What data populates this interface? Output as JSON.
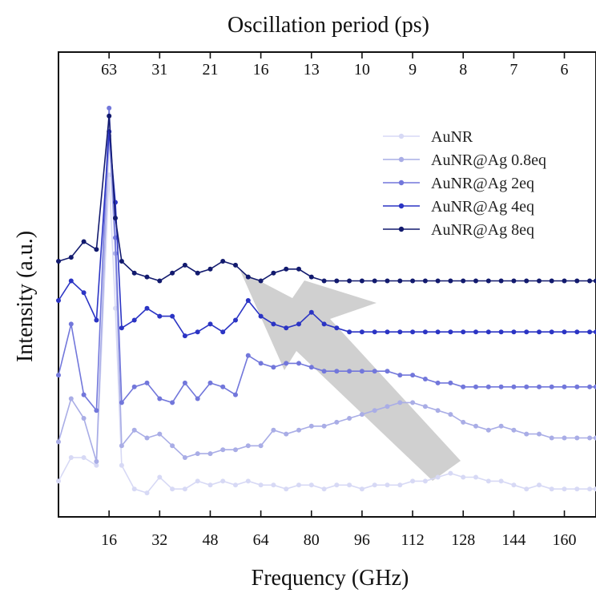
{
  "chart_data": {
    "type": "line",
    "xlabel": "Frequency (GHz)",
    "ylabel": "Intensity (a.u.)",
    "top_axis_label": "Oscillation period (ps)",
    "xlim": [
      0,
      170
    ],
    "bottom_ticks": [
      {
        "value": 16,
        "label": "16"
      },
      {
        "value": 32,
        "label": "32"
      },
      {
        "value": 48,
        "label": "48"
      },
      {
        "value": 64,
        "label": "64"
      },
      {
        "value": 80,
        "label": "80"
      },
      {
        "value": 96,
        "label": "96"
      },
      {
        "value": 112,
        "label": "112"
      },
      {
        "value": 128,
        "label": "128"
      },
      {
        "value": 144,
        "label": "144"
      },
      {
        "value": 160,
        "label": "160"
      }
    ],
    "top_ticks": [
      {
        "value": 16,
        "label": "63"
      },
      {
        "value": 32,
        "label": "31"
      },
      {
        "value": 48,
        "label": "21"
      },
      {
        "value": 64,
        "label": "16"
      },
      {
        "value": 80,
        "label": "13"
      },
      {
        "value": 96,
        "label": "10"
      },
      {
        "value": 112,
        "label": "9"
      },
      {
        "value": 128,
        "label": "8"
      },
      {
        "value": 144,
        "label": "7"
      },
      {
        "value": 160,
        "label": "6"
      }
    ],
    "legend_position": "top-right",
    "annotation": "grey arrow pointing from high to low frequency",
    "series": [
      {
        "name": "AuNR",
        "color": "#d7d9f5",
        "x": [
          0,
          4,
          8,
          12,
          16,
          18,
          20,
          24,
          28,
          32,
          36,
          40,
          44,
          48,
          52,
          56,
          60,
          64,
          68,
          72,
          76,
          80,
          84,
          88,
          92,
          96,
          100,
          104,
          108,
          112,
          116,
          120,
          124,
          128,
          132,
          136,
          140,
          144,
          148,
          152,
          156,
          160,
          164,
          168,
          170
        ],
        "y": [
          0.04,
          0.1,
          0.1,
          0.08,
          0.82,
          0.48,
          0.08,
          0.02,
          0.01,
          0.05,
          0.02,
          0.02,
          0.04,
          0.03,
          0.04,
          0.03,
          0.04,
          0.03,
          0.03,
          0.02,
          0.03,
          0.03,
          0.02,
          0.03,
          0.03,
          0.02,
          0.03,
          0.03,
          0.03,
          0.04,
          0.04,
          0.05,
          0.06,
          0.05,
          0.05,
          0.04,
          0.04,
          0.03,
          0.02,
          0.03,
          0.02,
          0.02,
          0.02,
          0.02,
          0.02
        ]
      },
      {
        "name": "AuNR@Ag 0.8eq",
        "color": "#a9ade6",
        "x": [
          0,
          4,
          8,
          12,
          16,
          18,
          20,
          24,
          28,
          32,
          36,
          40,
          44,
          48,
          52,
          56,
          60,
          64,
          68,
          72,
          76,
          80,
          84,
          88,
          92,
          96,
          100,
          104,
          108,
          112,
          116,
          120,
          124,
          128,
          132,
          136,
          140,
          144,
          148,
          152,
          156,
          160,
          164,
          168,
          170
        ],
        "y": [
          0.14,
          0.25,
          0.2,
          0.09,
          0.92,
          0.62,
          0.13,
          0.17,
          0.15,
          0.16,
          0.13,
          0.1,
          0.11,
          0.11,
          0.12,
          0.12,
          0.13,
          0.13,
          0.17,
          0.16,
          0.17,
          0.18,
          0.18,
          0.19,
          0.2,
          0.21,
          0.22,
          0.23,
          0.24,
          0.24,
          0.23,
          0.22,
          0.21,
          0.19,
          0.18,
          0.17,
          0.18,
          0.17,
          0.16,
          0.16,
          0.15,
          0.15,
          0.15,
          0.15,
          0.15
        ]
      },
      {
        "name": "AuNR@Ag 2eq",
        "color": "#7277db",
        "x": [
          0,
          4,
          8,
          12,
          16,
          18,
          20,
          24,
          28,
          32,
          36,
          40,
          44,
          48,
          52,
          56,
          60,
          64,
          68,
          72,
          76,
          80,
          84,
          88,
          92,
          96,
          100,
          104,
          108,
          112,
          116,
          120,
          124,
          128,
          132,
          136,
          140,
          144,
          148,
          152,
          156,
          160,
          164,
          168,
          170
        ],
        "y": [
          0.31,
          0.44,
          0.26,
          0.22,
          0.99,
          0.66,
          0.24,
          0.28,
          0.29,
          0.25,
          0.24,
          0.29,
          0.25,
          0.29,
          0.28,
          0.26,
          0.36,
          0.34,
          0.33,
          0.34,
          0.34,
          0.33,
          0.32,
          0.32,
          0.32,
          0.32,
          0.32,
          0.32,
          0.31,
          0.31,
          0.3,
          0.29,
          0.29,
          0.28,
          0.28,
          0.28,
          0.28,
          0.28,
          0.28,
          0.28,
          0.28,
          0.28,
          0.28,
          0.28,
          0.28
        ]
      },
      {
        "name": "AuNR@Ag 4eq",
        "color": "#2b34c4",
        "x": [
          0,
          4,
          8,
          12,
          16,
          18,
          20,
          24,
          28,
          32,
          36,
          40,
          44,
          48,
          52,
          56,
          60,
          64,
          68,
          72,
          76,
          80,
          84,
          88,
          92,
          96,
          100,
          104,
          108,
          112,
          116,
          120,
          124,
          128,
          132,
          136,
          140,
          144,
          148,
          152,
          156,
          160,
          164,
          168,
          170
        ],
        "y": [
          0.5,
          0.55,
          0.52,
          0.45,
          0.93,
          0.75,
          0.43,
          0.45,
          0.48,
          0.46,
          0.46,
          0.41,
          0.42,
          0.44,
          0.42,
          0.45,
          0.5,
          0.46,
          0.44,
          0.43,
          0.44,
          0.47,
          0.44,
          0.43,
          0.42,
          0.42,
          0.42,
          0.42,
          0.42,
          0.42,
          0.42,
          0.42,
          0.42,
          0.42,
          0.42,
          0.42,
          0.42,
          0.42,
          0.42,
          0.42,
          0.42,
          0.42,
          0.42,
          0.42,
          0.42
        ]
      },
      {
        "name": "AuNR@Ag 8eq",
        "color": "#121a6e",
        "x": [
          0,
          4,
          8,
          12,
          16,
          18,
          20,
          24,
          28,
          32,
          36,
          40,
          44,
          48,
          52,
          56,
          60,
          64,
          68,
          72,
          76,
          80,
          84,
          88,
          92,
          96,
          100,
          104,
          108,
          112,
          116,
          120,
          124,
          128,
          132,
          136,
          140,
          144,
          148,
          152,
          156,
          160,
          164,
          168,
          170
        ],
        "y": [
          0.6,
          0.61,
          0.65,
          0.63,
          0.97,
          0.71,
          0.6,
          0.57,
          0.56,
          0.55,
          0.57,
          0.59,
          0.57,
          0.58,
          0.6,
          0.59,
          0.56,
          0.55,
          0.57,
          0.58,
          0.58,
          0.56,
          0.55,
          0.55,
          0.55,
          0.55,
          0.55,
          0.55,
          0.55,
          0.55,
          0.55,
          0.55,
          0.55,
          0.55,
          0.55,
          0.55,
          0.55,
          0.55,
          0.55,
          0.55,
          0.55,
          0.55,
          0.55,
          0.55,
          0.55
        ]
      }
    ]
  }
}
